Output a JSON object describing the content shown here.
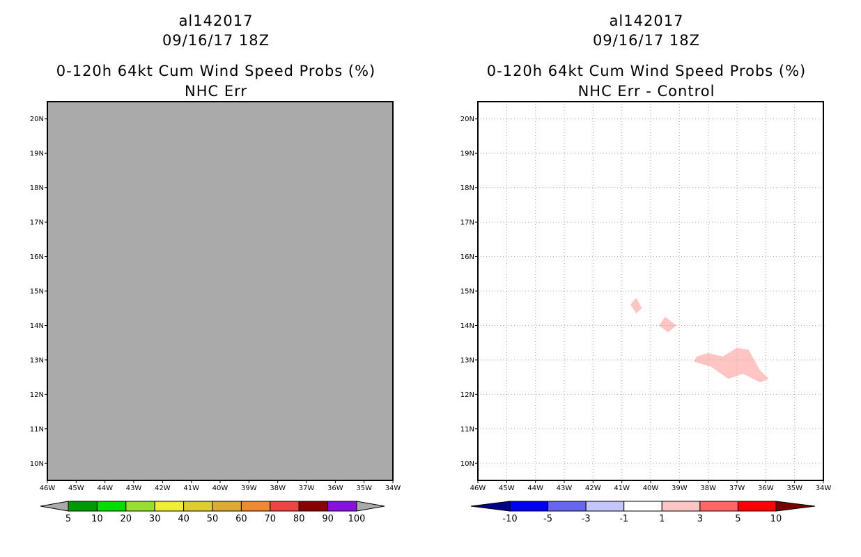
{
  "panels": [
    {
      "storm_id": "al142017",
      "datetime": "09/16/17 18Z",
      "product": "0-120h 64kt Cum Wind Speed Probs (%)",
      "subtitle": "NHC Err"
    },
    {
      "storm_id": "al142017",
      "datetime": "09/16/17 18Z",
      "product": "0-120h 64kt Cum Wind Speed Probs (%)",
      "subtitle": "NHC Err - Control"
    }
  ],
  "chart_data": [
    {
      "type": "heatmap",
      "title": "0-120h 64kt Cum Wind Speed Probs (%) NHC Err",
      "xlim": [
        -46,
        -34
      ],
      "ylim": [
        9.5,
        20.5
      ],
      "x_ticks": [
        -46,
        -45,
        -44,
        -43,
        -42,
        -41,
        -40,
        -39,
        -38,
        -37,
        -36,
        -35,
        -34
      ],
      "x_tick_labels": [
        "46W",
        "45W",
        "44W",
        "43W",
        "42W",
        "41W",
        "40W",
        "39W",
        "38W",
        "37W",
        "36W",
        "35W",
        "34W"
      ],
      "y_ticks": [
        10,
        11,
        12,
        13,
        14,
        15,
        16,
        17,
        18,
        19,
        20
      ],
      "y_tick_labels": [
        "10N",
        "11N",
        "12N",
        "13N",
        "14N",
        "15N",
        "16N",
        "17N",
        "18N",
        "19N",
        "20N"
      ],
      "background_color": "#aaaaaa",
      "grid": false,
      "field": "uniformly below 5% (entire domain grey)",
      "colorbar": {
        "labels": [
          "5",
          "10",
          "20",
          "30",
          "40",
          "50",
          "60",
          "70",
          "80",
          "90",
          "100"
        ],
        "colors": [
          "#009900",
          "#00dd00",
          "#99dd33",
          "#eeee33",
          "#ddcc33",
          "#ddaa33",
          "#ee8833",
          "#ee4444",
          "#880000",
          "#8811dd"
        ],
        "under_color": "#aaaaaa",
        "over_color": "#aaaaaa"
      }
    },
    {
      "type": "heatmap",
      "title": "0-120h 64kt Cum Wind Speed Probs (%) NHC Err - Control",
      "xlim": [
        -46,
        -34
      ],
      "ylim": [
        9.5,
        20.5
      ],
      "x_ticks": [
        -46,
        -45,
        -44,
        -43,
        -42,
        -41,
        -40,
        -39,
        -38,
        -37,
        -36,
        -35,
        -34
      ],
      "x_tick_labels": [
        "46W",
        "45W",
        "44W",
        "43W",
        "42W",
        "41W",
        "40W",
        "39W",
        "38W",
        "37W",
        "36W",
        "35W",
        "34W"
      ],
      "y_ticks": [
        10,
        11,
        12,
        13,
        14,
        15,
        16,
        17,
        18,
        19,
        20
      ],
      "y_tick_labels": [
        "10N",
        "11N",
        "12N",
        "13N",
        "14N",
        "15N",
        "16N",
        "17N",
        "18N",
        "19N",
        "20N"
      ],
      "background_color": "#ffffff",
      "grid": true,
      "regions": [
        {
          "range": "1 to 3",
          "color": "#ffc4c4",
          "polygon": [
            [
              -40.5,
              14.8
            ],
            [
              -40.3,
              14.5
            ],
            [
              -40.5,
              14.35
            ],
            [
              -40.7,
              14.6
            ]
          ]
        },
        {
          "range": "1 to 3",
          "color": "#ffc4c4",
          "polygon": [
            [
              -39.5,
              14.25
            ],
            [
              -39.1,
              14.0
            ],
            [
              -39.4,
              13.8
            ],
            [
              -39.7,
              14.0
            ]
          ]
        },
        {
          "range": "1 to 3",
          "color": "#ffc4c4",
          "polygon": [
            [
              -38.4,
              13.1
            ],
            [
              -38.0,
              13.2
            ],
            [
              -37.5,
              13.1
            ],
            [
              -37.0,
              13.35
            ],
            [
              -36.6,
              13.3
            ],
            [
              -36.2,
              12.7
            ],
            [
              -35.9,
              12.45
            ],
            [
              -36.2,
              12.35
            ],
            [
              -36.8,
              12.6
            ],
            [
              -37.3,
              12.45
            ],
            [
              -37.9,
              12.8
            ],
            [
              -38.5,
              12.95
            ]
          ]
        }
      ],
      "colorbar": {
        "labels": [
          "-10",
          "-5",
          "-3",
          "-1",
          "1",
          "3",
          "5",
          "10"
        ],
        "colors": [
          "#0000ee",
          "#6666ee",
          "#c4c4ff",
          "#ffffff",
          "#ffc4c4",
          "#ff6666",
          "#ff0000"
        ],
        "under_color": "#000088",
        "over_color": "#770000"
      }
    }
  ]
}
